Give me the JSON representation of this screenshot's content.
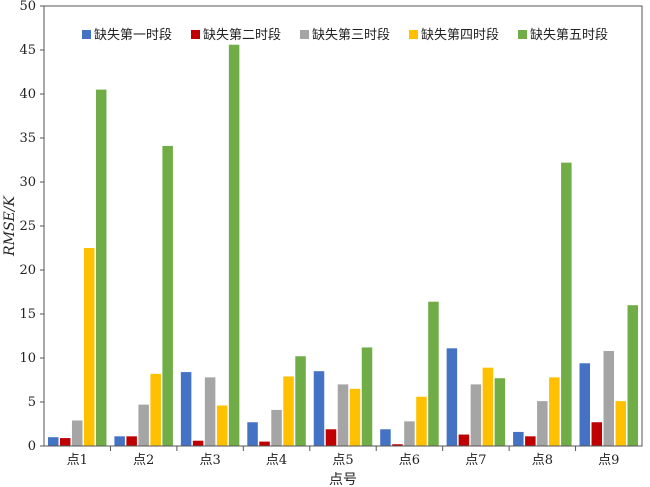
{
  "chart_data": {
    "type": "bar",
    "categories": [
      "点1",
      "点2",
      "点3",
      "点4",
      "点5",
      "点6",
      "点7",
      "点8",
      "点9"
    ],
    "series": [
      {
        "name": "缺失第一时段",
        "color": "#4472C4",
        "values": [
          1.0,
          1.1,
          8.4,
          2.7,
          8.5,
          1.9,
          11.1,
          1.6,
          9.4
        ]
      },
      {
        "name": "缺失第二时段",
        "color": "#C00000",
        "values": [
          0.9,
          1.1,
          0.6,
          0.5,
          1.9,
          0.2,
          1.3,
          1.1,
          2.7
        ]
      },
      {
        "name": "缺失第三时段",
        "color": "#A5A5A5",
        "values": [
          2.9,
          4.7,
          7.8,
          4.1,
          7.0,
          2.8,
          7.0,
          5.1,
          10.8
        ]
      },
      {
        "name": "缺失第四时段",
        "color": "#FFC000",
        "values": [
          22.5,
          8.2,
          4.6,
          7.9,
          6.5,
          5.6,
          8.9,
          7.8,
          5.1
        ]
      },
      {
        "name": "缺失第五时段",
        "color": "#70AD47",
        "values": [
          40.5,
          34.1,
          45.6,
          10.2,
          11.2,
          16.4,
          7.7,
          32.2,
          16.0
        ]
      }
    ],
    "xlabel": "点号",
    "ylabel": "RMSE/K",
    "ylim": [
      0,
      50
    ],
    "yticks": [
      0,
      5,
      10,
      15,
      20,
      25,
      30,
      35,
      40,
      45,
      50
    ],
    "legend_position": "top-right",
    "grid": false
  }
}
